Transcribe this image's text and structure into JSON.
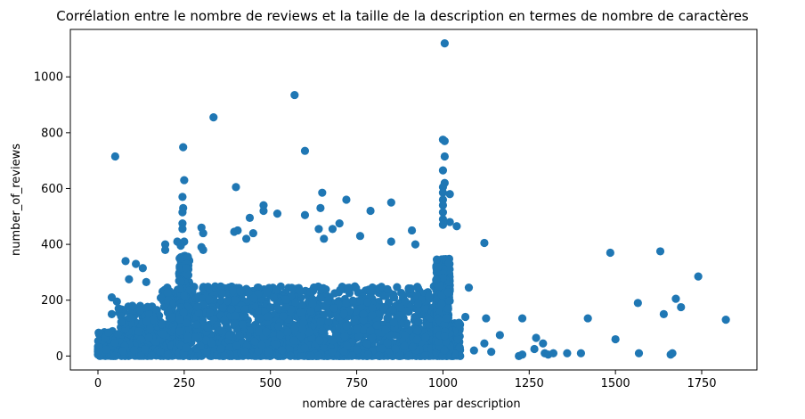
{
  "chart_data": {
    "type": "scatter",
    "title": "Corrélation entre le nombre de reviews et la taille de la description en termes de nombre de caractères",
    "xlabel": "nombre de caractères par description",
    "ylabel": "number_of_reviews",
    "xlim": [
      -80,
      1910
    ],
    "ylim": [
      -50,
      1170
    ],
    "x_ticks": [
      0,
      250,
      500,
      750,
      1000,
      1250,
      1500,
      1750
    ],
    "y_ticks": [
      0,
      200,
      400,
      600,
      800,
      1000
    ],
    "grid": false,
    "point_color": "#1f77b4",
    "dense_region": {
      "x_range": [
        0,
        1050
      ],
      "description": "very dense cloud of points between 0 and ~250 reviews"
    },
    "points": [
      {
        "x": 0,
        "y": 5
      },
      {
        "x": 0,
        "y": 15
      },
      {
        "x": 50,
        "y": 715
      },
      {
        "x": 40,
        "y": 210
      },
      {
        "x": 55,
        "y": 195
      },
      {
        "x": 80,
        "y": 340
      },
      {
        "x": 90,
        "y": 275
      },
      {
        "x": 110,
        "y": 330
      },
      {
        "x": 40,
        "y": 150
      },
      {
        "x": 60,
        "y": 170
      },
      {
        "x": 100,
        "y": 180
      },
      {
        "x": 140,
        "y": 265
      },
      {
        "x": 130,
        "y": 315
      },
      {
        "x": 195,
        "y": 400
      },
      {
        "x": 195,
        "y": 380
      },
      {
        "x": 230,
        "y": 410
      },
      {
        "x": 247,
        "y": 748
      },
      {
        "x": 250,
        "y": 630
      },
      {
        "x": 245,
        "y": 570
      },
      {
        "x": 247,
        "y": 530
      },
      {
        "x": 245,
        "y": 515
      },
      {
        "x": 245,
        "y": 475
      },
      {
        "x": 245,
        "y": 455
      },
      {
        "x": 250,
        "y": 410
      },
      {
        "x": 240,
        "y": 395
      },
      {
        "x": 300,
        "y": 460
      },
      {
        "x": 305,
        "y": 440
      },
      {
        "x": 300,
        "y": 390
      },
      {
        "x": 305,
        "y": 380
      },
      {
        "x": 335,
        "y": 855
      },
      {
        "x": 400,
        "y": 605
      },
      {
        "x": 395,
        "y": 445
      },
      {
        "x": 405,
        "y": 450
      },
      {
        "x": 430,
        "y": 420
      },
      {
        "x": 440,
        "y": 495
      },
      {
        "x": 450,
        "y": 440
      },
      {
        "x": 480,
        "y": 540
      },
      {
        "x": 480,
        "y": 520
      },
      {
        "x": 520,
        "y": 510
      },
      {
        "x": 570,
        "y": 935
      },
      {
        "x": 600,
        "y": 735
      },
      {
        "x": 600,
        "y": 505
      },
      {
        "x": 640,
        "y": 455
      },
      {
        "x": 645,
        "y": 530
      },
      {
        "x": 650,
        "y": 585
      },
      {
        "x": 655,
        "y": 420
      },
      {
        "x": 680,
        "y": 455
      },
      {
        "x": 700,
        "y": 475
      },
      {
        "x": 720,
        "y": 560
      },
      {
        "x": 760,
        "y": 430
      },
      {
        "x": 790,
        "y": 520
      },
      {
        "x": 850,
        "y": 550
      },
      {
        "x": 850,
        "y": 410
      },
      {
        "x": 910,
        "y": 450
      },
      {
        "x": 920,
        "y": 400
      },
      {
        "x": 1005,
        "y": 1120
      },
      {
        "x": 1000,
        "y": 775
      },
      {
        "x": 1005,
        "y": 770
      },
      {
        "x": 1005,
        "y": 715
      },
      {
        "x": 1000,
        "y": 665
      },
      {
        "x": 1005,
        "y": 620
      },
      {
        "x": 1000,
        "y": 605
      },
      {
        "x": 1000,
        "y": 585
      },
      {
        "x": 1020,
        "y": 580
      },
      {
        "x": 1000,
        "y": 560
      },
      {
        "x": 1000,
        "y": 540
      },
      {
        "x": 1000,
        "y": 515
      },
      {
        "x": 1000,
        "y": 490
      },
      {
        "x": 1040,
        "y": 465
      },
      {
        "x": 1020,
        "y": 480
      },
      {
        "x": 1000,
        "y": 470
      },
      {
        "x": 1075,
        "y": 245
      },
      {
        "x": 1065,
        "y": 140
      },
      {
        "x": 1120,
        "y": 405
      },
      {
        "x": 1125,
        "y": 135
      },
      {
        "x": 1120,
        "y": 45
      },
      {
        "x": 1090,
        "y": 20
      },
      {
        "x": 1140,
        "y": 15
      },
      {
        "x": 1165,
        "y": 75
      },
      {
        "x": 1230,
        "y": 135
      },
      {
        "x": 1220,
        "y": 0
      },
      {
        "x": 1230,
        "y": 5
      },
      {
        "x": 1270,
        "y": 65
      },
      {
        "x": 1290,
        "y": 45
      },
      {
        "x": 1265,
        "y": 25
      },
      {
        "x": 1295,
        "y": 10
      },
      {
        "x": 1305,
        "y": 5
      },
      {
        "x": 1320,
        "y": 10
      },
      {
        "x": 1360,
        "y": 10
      },
      {
        "x": 1400,
        "y": 10
      },
      {
        "x": 1420,
        "y": 135
      },
      {
        "x": 1485,
        "y": 370
      },
      {
        "x": 1500,
        "y": 60
      },
      {
        "x": 1565,
        "y": 190
      },
      {
        "x": 1568,
        "y": 10
      },
      {
        "x": 1630,
        "y": 375
      },
      {
        "x": 1640,
        "y": 150
      },
      {
        "x": 1660,
        "y": 5
      },
      {
        "x": 1665,
        "y": 10
      },
      {
        "x": 1675,
        "y": 205
      },
      {
        "x": 1690,
        "y": 175
      },
      {
        "x": 1740,
        "y": 285
      },
      {
        "x": 1820,
        "y": 130
      }
    ]
  }
}
